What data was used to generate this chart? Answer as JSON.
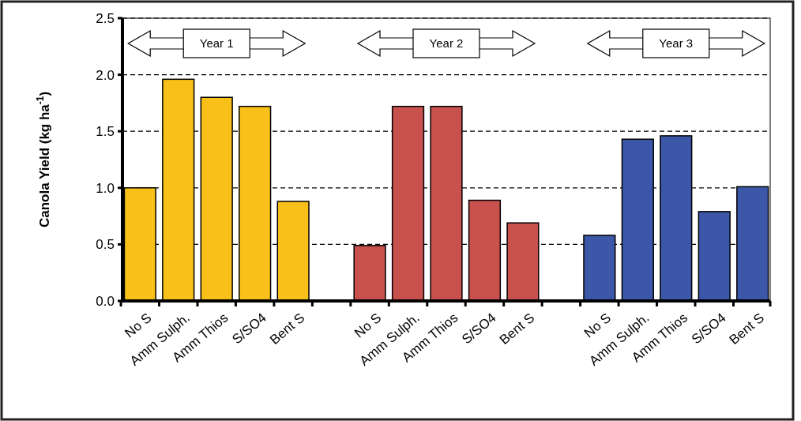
{
  "chart_data": {
    "type": "bar",
    "ylabel": "Canola Yield (kg ha$^{-1}$)",
    "categories": [
      "No S",
      "Amm Sulph.",
      "Amm Thios",
      "S/SO4",
      "Bent S",
      null,
      "No S",
      "Amm Sulph.",
      "Amm Thios",
      "S/SO4",
      "Bent S",
      null,
      "No S",
      "Amm Sulph.",
      "Amm Thios",
      "S/SO4",
      "Bent S"
    ],
    "values": [
      1.0,
      1.96,
      1.8,
      1.72,
      0.88,
      null,
      0.49,
      1.72,
      1.72,
      0.89,
      0.69,
      null,
      0.58,
      1.43,
      1.46,
      0.79,
      1.01
    ],
    "colors": [
      "#f9c01a",
      "#f9c01a",
      "#f9c01a",
      "#f9c01a",
      "#f9c01a",
      null,
      "#c8504d",
      "#c8504d",
      "#c8504d",
      "#c8504d",
      "#c8504d",
      null,
      "#3c56a8",
      "#3c56a8",
      "#3c56a8",
      "#3c56a8",
      "#3c56a8"
    ],
    "annotations": [
      "Year 1",
      "Year 2",
      "Year 3"
    ],
    "ylim": [
      0,
      2.5
    ],
    "yticks": [
      {
        "value": 0,
        "label": "0.0"
      },
      {
        "value": 0.5,
        "label": "0.5"
      },
      {
        "value": 1,
        "label": "1.0"
      },
      {
        "value": 1.5,
        "label": "1.5"
      },
      {
        "value": 2,
        "label": "2.0"
      },
      {
        "value": 2.5,
        "label": "2.5"
      }
    ],
    "grid": "y",
    "line_style": "dashed"
  }
}
